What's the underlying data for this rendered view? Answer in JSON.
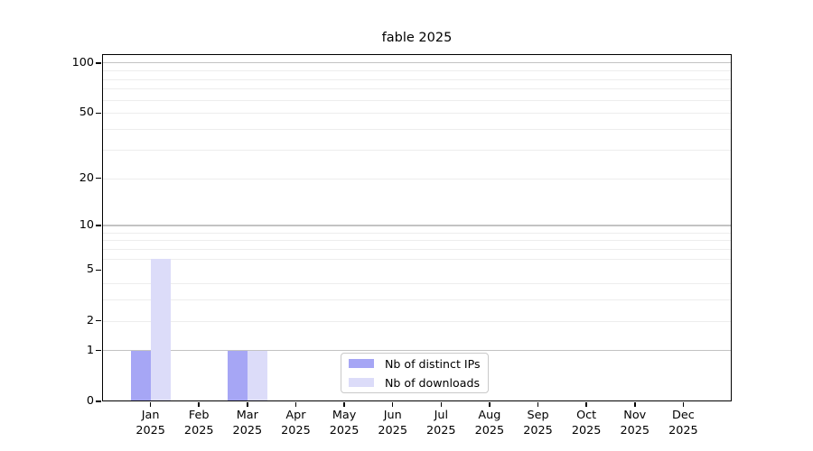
{
  "chart_data": {
    "type": "bar",
    "title": "fable 2025",
    "categories": [
      "Jan",
      "Feb",
      "Mar",
      "Apr",
      "May",
      "Jun",
      "Jul",
      "Aug",
      "Sep",
      "Oct",
      "Nov",
      "Dec"
    ],
    "year_label": "2025",
    "series": [
      {
        "name": "Nb of distinct IPs",
        "color": "#a6a6f5",
        "values": [
          1,
          0,
          1,
          0,
          0,
          0,
          0,
          0,
          0,
          0,
          0,
          0
        ]
      },
      {
        "name": "Nb of downloads",
        "color": "#dcdcf9",
        "values": [
          6,
          0,
          1,
          0,
          0,
          0,
          0,
          0,
          0,
          0,
          0,
          0
        ]
      }
    ],
    "y_axis": {
      "scale": "log1p",
      "ticks": [
        0,
        1,
        2,
        5,
        10,
        20,
        50,
        100
      ],
      "major_gridlines": [
        1,
        10,
        100
      ],
      "minor_gridlines": [
        2,
        3,
        4,
        6,
        7,
        8,
        9,
        20,
        30,
        40,
        50,
        60,
        70,
        80,
        90
      ],
      "top_value": 113
    },
    "legend": {
      "position": "bottom-center"
    },
    "grid": true
  },
  "colors": {
    "major_grid": "#c3c3c3",
    "minor_grid": "#ededed",
    "spine": "#000000",
    "text": "#000000",
    "legend_border": "#c9c9c9",
    "background": "#ffffff"
  }
}
